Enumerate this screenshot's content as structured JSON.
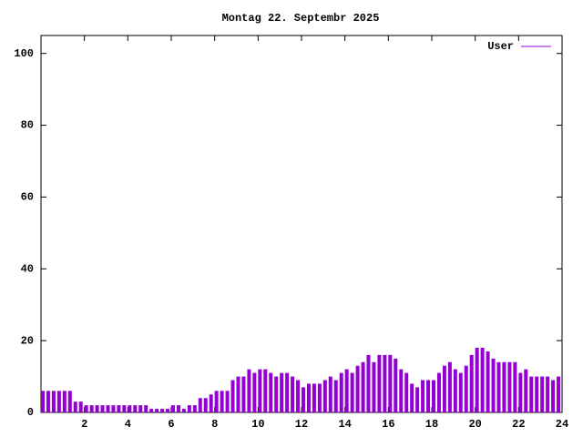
{
  "chart_data": {
    "type": "impulse",
    "title": "Montag 22. Septembr 2025",
    "x": [
      0,
      0.25,
      0.5,
      0.75,
      1,
      1.25,
      1.5,
      1.75,
      2,
      2.25,
      2.5,
      2.75,
      3,
      3.25,
      3.5,
      3.75,
      4,
      4.25,
      4.5,
      4.75,
      5,
      5.25,
      5.5,
      5.75,
      6,
      6.25,
      6.5,
      6.75,
      7,
      7.25,
      7.5,
      7.75,
      8,
      8.25,
      8.5,
      8.75,
      9,
      9.25,
      9.5,
      9.75,
      10,
      10.25,
      10.5,
      10.75,
      11,
      11.25,
      11.5,
      11.75,
      12,
      12.25,
      12.5,
      12.75,
      13,
      13.25,
      13.5,
      13.75,
      14,
      14.25,
      14.5,
      14.75,
      15,
      15.25,
      15.5,
      15.75,
      16,
      16.25,
      16.5,
      16.75,
      17,
      17.25,
      17.5,
      17.75,
      18,
      18.25,
      18.5,
      18.75,
      19,
      19.25,
      19.5,
      19.75,
      20,
      20.25,
      20.5,
      20.75,
      21,
      21.25,
      21.5,
      21.75,
      22,
      22.25,
      22.5,
      22.75,
      23,
      23.25,
      23.5,
      23.75
    ],
    "series": [
      {
        "name": "User",
        "color": "#9400d3",
        "values": [
          6,
          6,
          6,
          6,
          6,
          6,
          3,
          3,
          2,
          2,
          2,
          2,
          2,
          2,
          2,
          2,
          2,
          2,
          2,
          2,
          1,
          1,
          1,
          1,
          2,
          2,
          1,
          2,
          2,
          4,
          4,
          5,
          6,
          6,
          6,
          9,
          10,
          10,
          12,
          11,
          12,
          12,
          11,
          10,
          11,
          11,
          10,
          9,
          7,
          8,
          8,
          8,
          9,
          10,
          9,
          11,
          12,
          11,
          13,
          14,
          16,
          14,
          16,
          16,
          16,
          15,
          12,
          11,
          8,
          7,
          9,
          9,
          9,
          11,
          13,
          14,
          12,
          11,
          13,
          16,
          18,
          18,
          17,
          15,
          14,
          14,
          14,
          14,
          11,
          12,
          10,
          10,
          10,
          10,
          9,
          10
        ]
      }
    ],
    "xlim": [
      0,
      24
    ],
    "xticks": [
      2,
      4,
      6,
      8,
      10,
      12,
      14,
      16,
      18,
      20,
      22,
      24
    ],
    "ylim": [
      0,
      105
    ],
    "yticks": [
      0,
      20,
      40,
      60,
      80,
      100
    ],
    "legend": "top-right"
  }
}
